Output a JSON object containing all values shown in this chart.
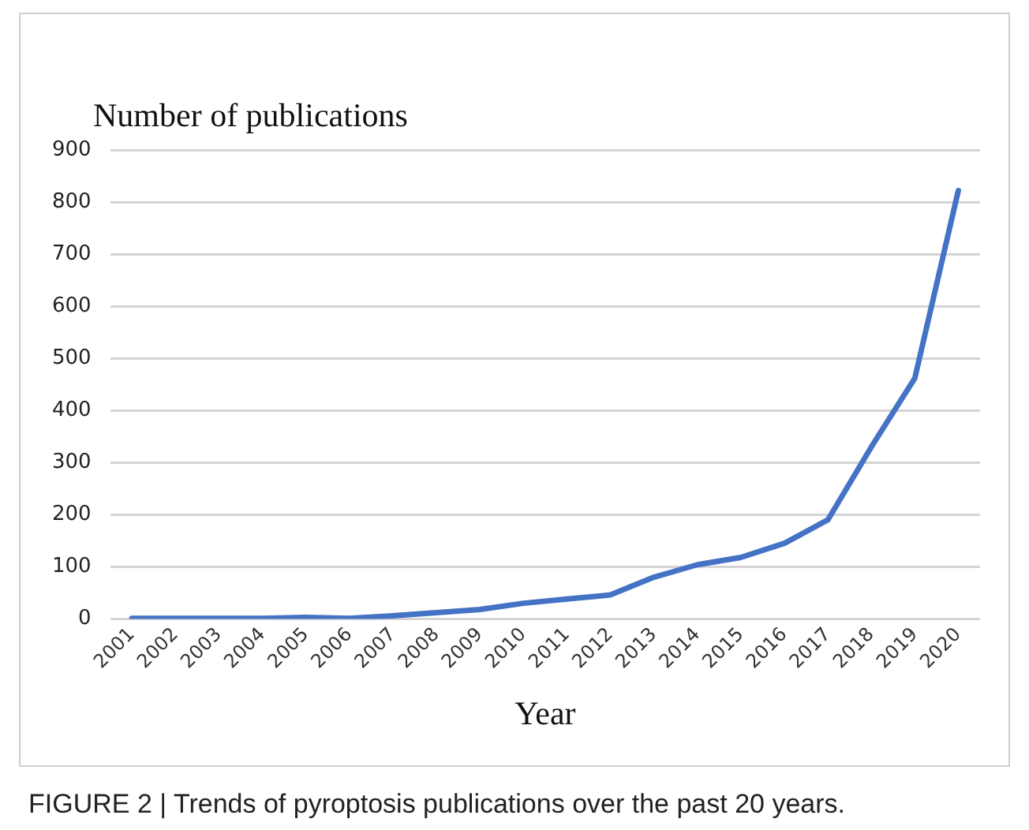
{
  "chart_data": {
    "type": "line",
    "ylabel": "Number of publications",
    "xlabel": "Year",
    "categories": [
      "2001",
      "2002",
      "2003",
      "2004",
      "2005",
      "2006",
      "2007",
      "2008",
      "2009",
      "2010",
      "2011",
      "2012",
      "2013",
      "2014",
      "2015",
      "2016",
      "2017",
      "2018",
      "2019",
      "2020"
    ],
    "series": [
      {
        "color": "#4472c4",
        "values": [
          1,
          1,
          1,
          1,
          3,
          1,
          6,
          12,
          18,
          30,
          38,
          46,
          80,
          104,
          118,
          145,
          190,
          330,
          462,
          822
        ]
      }
    ],
    "ylim": [
      0,
      900
    ],
    "yticks": [
      0,
      100,
      200,
      300,
      400,
      500,
      600,
      700,
      800,
      900
    ],
    "grid": "y",
    "legend": false,
    "marker": "none",
    "annotations": [
      "FIGURE 2 | Trends of pyroptosis publications over the past 20 years."
    ]
  }
}
